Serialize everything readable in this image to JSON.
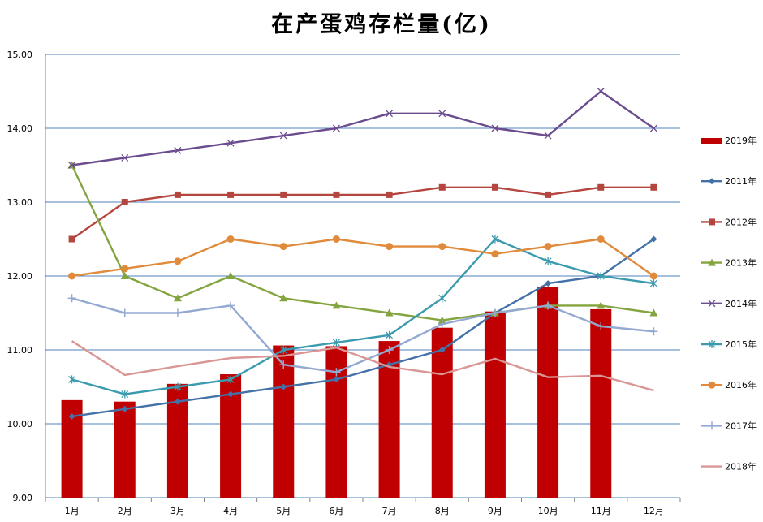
{
  "chart_data": {
    "type": "bar+line",
    "title": "在产蛋鸡存栏量(亿)",
    "categories": [
      "1月",
      "2月",
      "3月",
      "4月",
      "5月",
      "6月",
      "7月",
      "8月",
      "9月",
      "10月",
      "11月",
      "12月"
    ],
    "ylim": [
      9.0,
      15.0
    ],
    "yticks": [
      "9.00",
      "10.00",
      "11.00",
      "12.00",
      "13.00",
      "14.00",
      "15.00"
    ],
    "grid": true,
    "legend_position": "right",
    "bar_series": {
      "name": "2019年",
      "color": "#C00000",
      "values": [
        10.32,
        10.3,
        10.54,
        10.67,
        11.06,
        11.05,
        11.12,
        11.3,
        11.52,
        11.85,
        11.55,
        null
      ]
    },
    "line_series": [
      {
        "name": "2011年",
        "color": "#4472A8",
        "marker": "diamond",
        "values": [
          10.1,
          10.2,
          10.3,
          10.4,
          10.5,
          10.6,
          10.8,
          11.0,
          11.5,
          11.9,
          12.0,
          12.5
        ]
      },
      {
        "name": "2012年",
        "color": "#B5463F",
        "marker": "square",
        "values": [
          12.5,
          13.0,
          13.1,
          13.1,
          13.1,
          13.1,
          13.1,
          13.2,
          13.2,
          13.1,
          13.2,
          13.2
        ]
      },
      {
        "name": "2013年",
        "color": "#84A43F",
        "marker": "triangle",
        "values": [
          13.5,
          12.0,
          11.7,
          12.0,
          11.7,
          11.6,
          11.5,
          11.4,
          11.5,
          11.6,
          11.6,
          11.5
        ]
      },
      {
        "name": "2014年",
        "color": "#6B4C8F",
        "marker": "x",
        "values": [
          13.5,
          13.6,
          13.7,
          13.8,
          13.9,
          14.0,
          14.2,
          14.2,
          14.0,
          13.9,
          14.5,
          14.0
        ]
      },
      {
        "name": "2015年",
        "color": "#3A9AAE",
        "marker": "star",
        "values": [
          10.6,
          10.4,
          10.5,
          10.6,
          11.0,
          11.1,
          11.2,
          11.7,
          12.5,
          12.2,
          12.0,
          11.9
        ]
      },
      {
        "name": "2016年",
        "color": "#E08A3C",
        "marker": "circle",
        "values": [
          12.0,
          12.1,
          12.2,
          12.5,
          12.4,
          12.5,
          12.4,
          12.4,
          12.3,
          12.4,
          12.5,
          12.0
        ]
      },
      {
        "name": "2017年",
        "color": "#93A9D1",
        "marker": "plus",
        "values": [
          11.7,
          11.5,
          11.5,
          11.6,
          10.8,
          10.7,
          11.0,
          11.35,
          11.5,
          11.6,
          11.32,
          11.25
        ]
      },
      {
        "name": "2018年",
        "color": "#D99694",
        "marker": "none",
        "values": [
          11.12,
          10.66,
          10.78,
          10.89,
          10.92,
          11.03,
          10.77,
          10.67,
          10.88,
          10.63,
          10.65,
          10.45
        ]
      }
    ]
  }
}
